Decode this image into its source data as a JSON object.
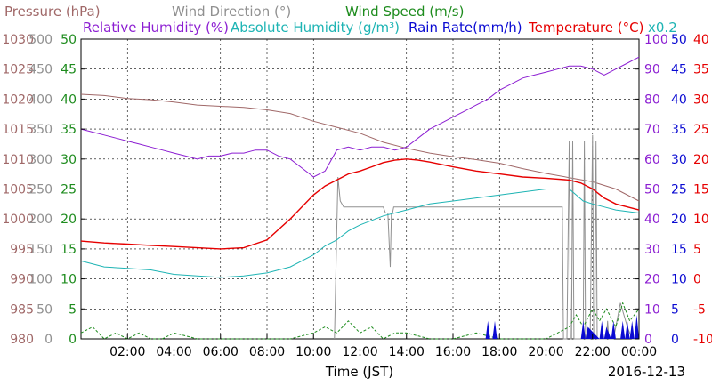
{
  "chart_data": {
    "type": "line",
    "date": "2016-12-13",
    "xlabel": "Time (JST)",
    "x_ticks": [
      "02:00",
      "04:00",
      "06:00",
      "08:00",
      "10:00",
      "12:00",
      "14:00",
      "16:00",
      "18:00",
      "20:00",
      "22:00",
      "00:00"
    ],
    "x_range_hours": [
      0,
      24
    ],
    "grid": true,
    "legend": {
      "row1": [
        {
          "key": "pressure",
          "label": "Pressure (hPa)",
          "color": "#a06868"
        },
        {
          "key": "wind_dir",
          "label": "Wind Direction (°)",
          "color": "#909090"
        },
        {
          "key": "wind_speed",
          "label": "Wind Speed (m/s)",
          "color": "#1e8c1e"
        }
      ],
      "row2": [
        {
          "key": "rh",
          "label": "Relative Humidity (%)",
          "color": "#8c1ed2"
        },
        {
          "key": "ah",
          "label": "Absolute Humidity (g/m³)",
          "color": "#1eb4b4"
        },
        {
          "key": "rain",
          "label": "Rain Rate(mm/h)",
          "color": "#0a0ad2"
        },
        {
          "key": "temp",
          "label": "Temperature (°C)",
          "color": "#e60000"
        }
      ],
      "ah_scale_note": "x0.2"
    },
    "axes": {
      "pressure": {
        "ylim": [
          980,
          1030
        ],
        "ticks": [
          "980",
          "985",
          "990",
          "995",
          "1000",
          "1005",
          "1010",
          "1015",
          "1020",
          "1025",
          "1030"
        ],
        "color": "#a06868"
      },
      "wind_dir": {
        "ylim": [
          0,
          500
        ],
        "ticks": [
          "0",
          "50",
          "100",
          "150",
          "200",
          "250",
          "300",
          "350",
          "400",
          "450",
          "500"
        ],
        "color": "#909090"
      },
      "wind_speed": {
        "ylim": [
          0,
          50
        ],
        "ticks": [
          "0",
          "5",
          "10",
          "15",
          "20",
          "25",
          "30",
          "35",
          "40",
          "45",
          "50"
        ],
        "color": "#1e8c1e"
      },
      "rh": {
        "ylim": [
          0,
          100
        ],
        "ticks": [
          "0",
          "10",
          "20",
          "30",
          "40",
          "50",
          "60",
          "70",
          "80",
          "90",
          "100"
        ],
        "color": "#8c1ed2"
      },
      "rain": {
        "ylim": [
          0,
          50
        ],
        "ticks": [
          "0",
          "5",
          "10",
          "15",
          "20",
          "25",
          "30",
          "35",
          "40",
          "45",
          "50"
        ],
        "color": "#0a0ad2"
      },
      "temp": {
        "ylim": [
          -10,
          40
        ],
        "ticks": [
          "-10",
          "-5",
          "0",
          "5",
          "10",
          "15",
          "20",
          "25",
          "30",
          "35",
          "40"
        ],
        "color": "#e60000"
      }
    },
    "series": [
      {
        "name": "Pressure (hPa)",
        "axis": "pressure",
        "color": "#a06868",
        "x": [
          0,
          1,
          2,
          3,
          4,
          5,
          6,
          7,
          8,
          9,
          10,
          11,
          12,
          13,
          14,
          15,
          16,
          17,
          18,
          19,
          20,
          21,
          22,
          23,
          24
        ],
        "y": [
          1020.8,
          1020.6,
          1020.1,
          1019.9,
          1019.5,
          1019.0,
          1018.8,
          1018.6,
          1018.2,
          1017.6,
          1016.3,
          1015.3,
          1014.3,
          1012.8,
          1011.8,
          1011.0,
          1010.4,
          1009.9,
          1009.3,
          1008.4,
          1007.6,
          1006.9,
          1006.2,
          1005.0,
          1003.0
        ]
      },
      {
        "name": "Wind Direction (°)",
        "axis": "wind_dir",
        "color": "#909090",
        "x": [
          0,
          10.9,
          11.05,
          11.15,
          11.3,
          12.0,
          13.0,
          13.1,
          13.2,
          13.3,
          13.35,
          13.4,
          13.45,
          14.0,
          14.5,
          14.55,
          15.5,
          16.5,
          17.5,
          18.5,
          19.5,
          20.5,
          20.7,
          20.75,
          20.8,
          20.9,
          21.0,
          21.05,
          21.1,
          21.15,
          21.2,
          21.6,
          21.65,
          21.7,
          21.9,
          22.0,
          22.05,
          22.1,
          22.15,
          22.2,
          22.6,
          22.65,
          22.7,
          22.8,
          22.9,
          23.0,
          23.2,
          23.5,
          23.7,
          23.8,
          24
        ],
        "y": [
          null,
          0,
          270,
          230,
          220,
          220,
          220,
          210,
          210,
          120,
          210,
          210,
          220,
          220,
          220,
          220,
          220,
          220,
          220,
          220,
          220,
          220,
          220,
          0,
          0,
          0,
          330,
          0,
          0,
          330,
          0,
          0,
          330,
          0,
          0,
          340,
          0,
          0,
          330,
          0,
          0,
          30,
          0,
          0,
          0,
          20,
          60,
          20,
          0,
          0,
          0
        ]
      },
      {
        "name": "Relative Humidity (%)",
        "axis": "rh",
        "color": "#8c1ed2",
        "x": [
          0,
          0.5,
          1,
          1.5,
          2,
          2.5,
          3,
          3.5,
          4,
          4.5,
          5,
          5.5,
          6,
          6.5,
          7,
          7.5,
          8,
          8.5,
          9,
          9.5,
          10,
          10.5,
          11,
          11.5,
          12,
          12.5,
          13,
          13.5,
          14,
          14.5,
          15,
          15.5,
          16,
          16.5,
          17,
          17.5,
          18,
          18.5,
          19,
          19.5,
          20,
          20.5,
          21,
          21.5,
          22,
          22.5,
          23,
          23.5,
          24
        ],
        "y": [
          70,
          69,
          68,
          67,
          66,
          65,
          64,
          63,
          62,
          61,
          60,
          61,
          61,
          62,
          62,
          63,
          63,
          61,
          60,
          57,
          54,
          56,
          63,
          64,
          63,
          64,
          64,
          63,
          64,
          67,
          70,
          72,
          74,
          76,
          78,
          80,
          83,
          85,
          87,
          88,
          89,
          90,
          91,
          91,
          90,
          88,
          90,
          92,
          94
        ]
      },
      {
        "name": "Absolute Humidity (g/m³)",
        "axis": "rh",
        "color": "#1eb4b4",
        "x": [
          0,
          1,
          2,
          3,
          4,
          5,
          6,
          7,
          8,
          9,
          10,
          10.5,
          11,
          11.5,
          12,
          13,
          14,
          15,
          16,
          17,
          18,
          19,
          20,
          21,
          21.3,
          21.6,
          22,
          22.5,
          23,
          24
        ],
        "y": [
          26,
          24,
          23.5,
          23,
          21.5,
          21,
          20.5,
          21,
          22,
          24,
          28,
          31,
          33,
          36,
          38,
          41,
          43,
          45,
          46,
          47,
          48,
          49,
          50,
          50,
          48,
          46,
          45,
          44,
          43,
          42
        ]
      },
      {
        "name": "Temperature (°C)",
        "axis": "temp",
        "color": "#e60000",
        "x": [
          0,
          1,
          2,
          3,
          4,
          5,
          6,
          7,
          8,
          9,
          10,
          10.5,
          11,
          11.5,
          12,
          12.5,
          13,
          13.5,
          14,
          14.5,
          15,
          16,
          17,
          18,
          19,
          20,
          21,
          21.5,
          22,
          22.5,
          23,
          23.5,
          24
        ],
        "y": [
          6.3,
          6.0,
          5.8,
          5.6,
          5.4,
          5.2,
          5.0,
          5.2,
          6.5,
          10.0,
          14.0,
          15.5,
          16.5,
          17.5,
          18.0,
          18.7,
          19.4,
          19.8,
          20.0,
          19.8,
          19.5,
          18.7,
          18.0,
          17.5,
          17.0,
          16.8,
          16.5,
          16.0,
          15.0,
          13.5,
          12.5,
          12.0,
          11.5
        ]
      },
      {
        "name": "Wind Speed (m/s)",
        "axis": "wind_speed",
        "color": "#1e8c1e",
        "x": [
          0,
          0.5,
          1,
          1.5,
          2,
          2.5,
          3,
          3.5,
          4,
          5,
          6,
          7,
          8,
          9,
          10,
          10.5,
          11,
          11.5,
          12,
          12.5,
          13,
          13.5,
          14,
          15,
          16,
          17,
          18,
          19,
          20,
          20.5,
          21,
          21.3,
          21.6,
          22,
          22.3,
          22.6,
          23,
          23.3,
          23.6,
          24
        ],
        "y": [
          1,
          2,
          0,
          1,
          0,
          1,
          0,
          0,
          1,
          0,
          0,
          0,
          0,
          0,
          1,
          2,
          1,
          3,
          1,
          2,
          0,
          1,
          1,
          0,
          0,
          1,
          0,
          0,
          0,
          1,
          2,
          4,
          2,
          5,
          3,
          5,
          2,
          6,
          3,
          5
        ]
      },
      {
        "name": "Rain Rate(mm/h)",
        "axis": "rain",
        "color": "#0a0ad2",
        "mode": "area",
        "x": [
          0,
          17.4,
          17.5,
          17.6,
          17.7,
          17.8,
          17.9,
          18.0,
          21.5,
          21.6,
          21.7,
          21.8,
          22.3,
          22.4,
          22.5,
          22.6,
          22.8,
          22.9,
          23.0,
          23.2,
          23.3,
          23.4,
          23.5,
          23.6,
          23.7,
          23.8,
          23.9,
          24
        ],
        "y": [
          0,
          0,
          3,
          0,
          0,
          3,
          0,
          0,
          0,
          3,
          0,
          2,
          0,
          3,
          0,
          2,
          0,
          3,
          0,
          0,
          3,
          0,
          3,
          0,
          3,
          0,
          4,
          0
        ]
      }
    ]
  }
}
